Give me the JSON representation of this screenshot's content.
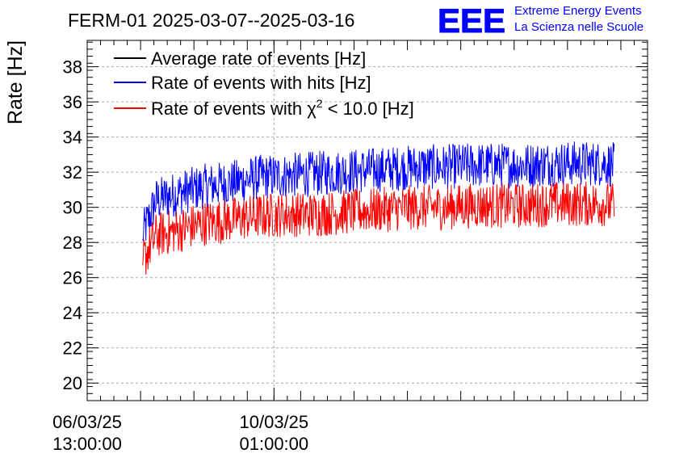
{
  "chart_data": {
    "type": "line",
    "title": "FERM-01 2025-03-07--2025-03-16",
    "ylabel": "Rate [Hz]",
    "xlabel": "",
    "ylim": [
      19,
      39.5
    ],
    "xlim": [
      "2025-03-06 13:00:00",
      "2025-03-17 01:00:00"
    ],
    "yticks": [
      20,
      22,
      24,
      26,
      28,
      30,
      32,
      34,
      36,
      38
    ],
    "xticks": [
      {
        "date": "2025-03-06 13:00:00",
        "label_date": "06/03/25",
        "label_time": "13:00:00"
      },
      {
        "date": "2025-03-10 01:00:00",
        "label_date": "10/03/25",
        "label_time": "01:00:00"
      }
    ],
    "grid": true,
    "legend_position": "top-left",
    "series": [
      {
        "name": "Average rate of events [Hz]",
        "color": "#000000",
        "x": [
          "2025-03-07 14:00",
          "2025-03-07 20:00",
          "2025-03-08 06:00",
          "2025-03-08 18:00",
          "2025-03-09 06:00",
          "2025-03-09 18:00",
          "2025-03-10 06:00",
          "2025-03-10 18:00",
          "2025-03-11 06:00",
          "2025-03-11 18:00",
          "2025-03-12 06:00",
          "2025-03-12 18:00",
          "2025-03-13 06:00",
          "2025-03-13 18:00",
          "2025-03-14 06:00",
          "2025-03-14 18:00",
          "2025-03-15 06:00",
          "2025-03-15 18:00",
          "2025-03-16 06:00",
          "2025-03-16 10:00"
        ],
        "y": [
          28.5,
          30.4,
          30.8,
          31.2,
          31.4,
          31.7,
          31.8,
          31.9,
          32.0,
          32.1,
          32.2,
          32.3,
          32.3,
          32.4,
          32.4,
          32.4,
          32.5,
          32.5,
          32.5,
          32.4
        ]
      },
      {
        "name": "Rate of events with hits [Hz]",
        "color": "#0000ff",
        "x": [
          "2025-03-07 14:00",
          "2025-03-07 20:00",
          "2025-03-08 06:00",
          "2025-03-08 18:00",
          "2025-03-09 06:00",
          "2025-03-09 18:00",
          "2025-03-10 06:00",
          "2025-03-10 18:00",
          "2025-03-11 06:00",
          "2025-03-11 18:00",
          "2025-03-12 06:00",
          "2025-03-12 18:00",
          "2025-03-13 06:00",
          "2025-03-13 18:00",
          "2025-03-14 06:00",
          "2025-03-14 18:00",
          "2025-03-15 06:00",
          "2025-03-15 18:00",
          "2025-03-16 06:00",
          "2025-03-16 10:00"
        ],
        "y": [
          28.5,
          30.4,
          30.8,
          31.2,
          31.4,
          31.7,
          31.8,
          31.9,
          32.0,
          32.1,
          32.2,
          32.3,
          32.3,
          32.4,
          32.4,
          32.4,
          32.5,
          32.5,
          32.5,
          32.4
        ],
        "spread": 1.3
      },
      {
        "name": "Rate of events with χ² < 10.0 [Hz]",
        "color": "#ff0000",
        "x": [
          "2025-03-07 14:00",
          "2025-03-07 20:00",
          "2025-03-08 06:00",
          "2025-03-08 18:00",
          "2025-03-09 06:00",
          "2025-03-09 18:00",
          "2025-03-10 06:00",
          "2025-03-10 18:00",
          "2025-03-11 06:00",
          "2025-03-11 18:00",
          "2025-03-12 06:00",
          "2025-03-12 18:00",
          "2025-03-13 06:00",
          "2025-03-13 18:00",
          "2025-03-14 06:00",
          "2025-03-14 18:00",
          "2025-03-15 06:00",
          "2025-03-15 18:00",
          "2025-03-16 06:00",
          "2025-03-16 10:00"
        ],
        "y": [
          27.0,
          28.4,
          28.7,
          29.1,
          29.3,
          29.5,
          29.6,
          29.6,
          29.7,
          29.8,
          29.9,
          30.0,
          30.0,
          30.1,
          30.1,
          30.1,
          30.2,
          30.2,
          30.2,
          30.1
        ],
        "spread": 1.3
      }
    ]
  },
  "legend": {
    "items": [
      {
        "text": "Average rate of events [Hz]",
        "color": "#000000"
      },
      {
        "text": "Rate of events with hits [Hz]",
        "color": "#0000ff"
      },
      {
        "text_pre": "Rate of events with ",
        "symbol": "χ",
        "sup": "2",
        "text_post": " < 10.0 [Hz]",
        "color": "#ff0000"
      }
    ]
  },
  "logo": {
    "mark": "EEE",
    "line1": "Extreme Energy Events",
    "line2": "La Scienza nelle Scuole",
    "color": "#0000ff"
  }
}
